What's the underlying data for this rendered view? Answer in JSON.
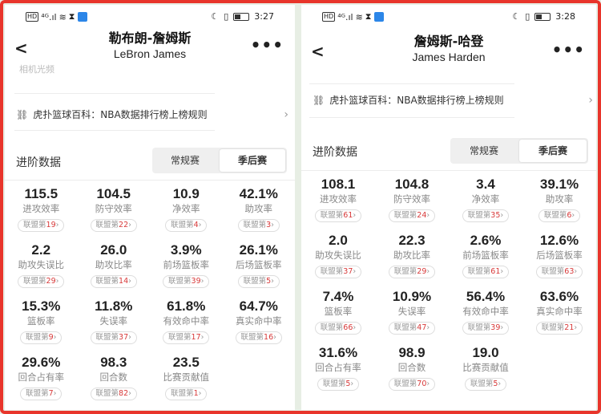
{
  "status_bar": [
    {
      "time": "3:27"
    },
    {
      "time": "3:28"
    }
  ],
  "panels": [
    {
      "player_name_cn": "勒布朗-詹姆斯",
      "player_name_en": "LeBron James",
      "faded_text": "相机光频",
      "wiki_link": "虎扑篮球百科：NBA数据排行榜上榜规则",
      "section_title": "进阶数据",
      "tabs": [
        "常规赛",
        "季后赛"
      ],
      "active_tab": "季后赛",
      "rank_prefix": "联盟第",
      "stats": [
        {
          "value": "115.5",
          "label": "进攻效率",
          "rank": "19"
        },
        {
          "value": "104.5",
          "label": "防守效率",
          "rank": "22"
        },
        {
          "value": "10.9",
          "label": "净效率",
          "rank": "4"
        },
        {
          "value": "42.1%",
          "label": "助攻率",
          "rank": "3"
        },
        {
          "value": "2.2",
          "label": "助攻失误比",
          "rank": "29"
        },
        {
          "value": "26.0",
          "label": "助攻比率",
          "rank": "14"
        },
        {
          "value": "3.9%",
          "label": "前场篮板率",
          "rank": "39"
        },
        {
          "value": "26.1%",
          "label": "后场篮板率",
          "rank": "5"
        },
        {
          "value": "15.3%",
          "label": "篮板率",
          "rank": "9"
        },
        {
          "value": "11.8%",
          "label": "失误率",
          "rank": "37"
        },
        {
          "value": "61.8%",
          "label": "有效命中率",
          "rank": "17"
        },
        {
          "value": "64.7%",
          "label": "真实命中率",
          "rank": "16"
        },
        {
          "value": "29.6%",
          "label": "回合占有率",
          "rank": "7"
        },
        {
          "value": "98.3",
          "label": "回合数",
          "rank": "82"
        },
        {
          "value": "23.5",
          "label": "比赛贡献值",
          "rank": "1"
        }
      ]
    },
    {
      "player_name_cn": "詹姆斯-哈登",
      "player_name_en": "James Harden",
      "wiki_link": "虎扑篮球百科：NBA数据排行榜上榜规则",
      "section_title": "进阶数据",
      "tabs": [
        "常规赛",
        "季后赛"
      ],
      "active_tab": "季后赛",
      "rank_prefix": "联盟第",
      "stats": [
        {
          "value": "108.1",
          "label": "进攻效率",
          "rank": "61"
        },
        {
          "value": "104.8",
          "label": "防守效率",
          "rank": "24"
        },
        {
          "value": "3.4",
          "label": "净效率",
          "rank": "35"
        },
        {
          "value": "39.1%",
          "label": "助攻率",
          "rank": "6"
        },
        {
          "value": "2.0",
          "label": "助攻失误比",
          "rank": "37"
        },
        {
          "value": "22.3",
          "label": "助攻比率",
          "rank": "29"
        },
        {
          "value": "2.6%",
          "label": "前场篮板率",
          "rank": "61"
        },
        {
          "value": "12.6%",
          "label": "后场篮板率",
          "rank": "63"
        },
        {
          "value": "7.4%",
          "label": "篮板率",
          "rank": "66"
        },
        {
          "value": "10.9%",
          "label": "失误率",
          "rank": "47"
        },
        {
          "value": "56.4%",
          "label": "有效命中率",
          "rank": "39"
        },
        {
          "value": "63.6%",
          "label": "真实命中率",
          "rank": "21"
        },
        {
          "value": "31.6%",
          "label": "回合占有率",
          "rank": "5"
        },
        {
          "value": "98.9",
          "label": "回合数",
          "rank": "70"
        },
        {
          "value": "19.0",
          "label": "比赛贡献值",
          "rank": "5"
        }
      ]
    }
  ],
  "icons": {
    "back": "chevron-left-icon",
    "more": "more-dots-icon",
    "link": "link-icon",
    "wiki_arrow": "chevron-right-icon"
  },
  "colors": {
    "rank_number": "#d83a3a",
    "frame": "#e8352b"
  }
}
